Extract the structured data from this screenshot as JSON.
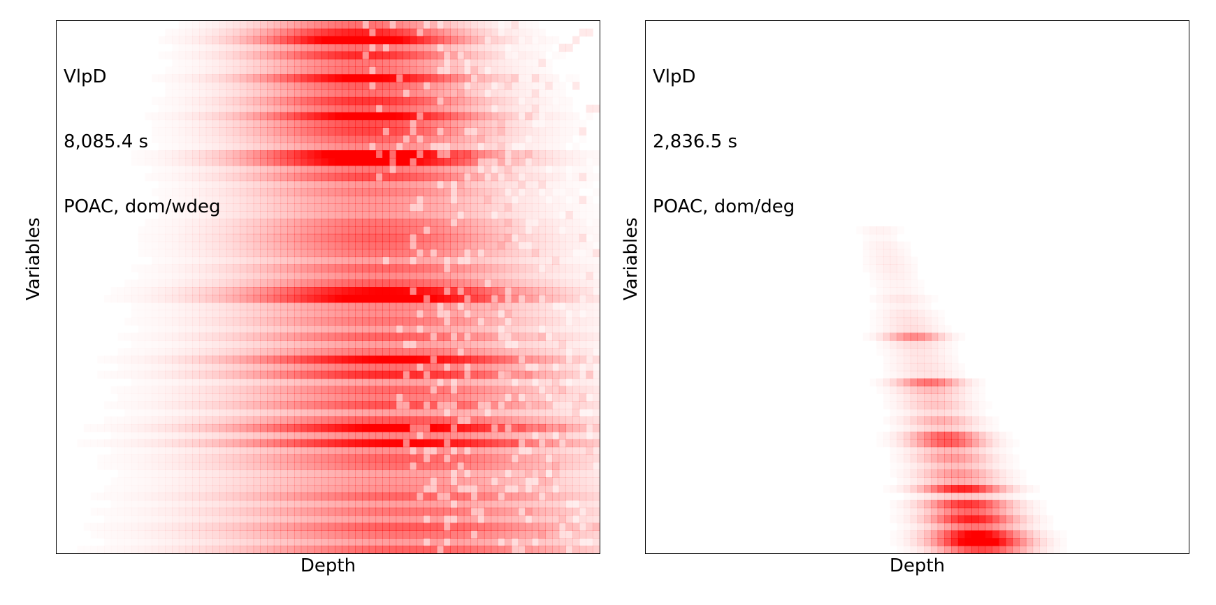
{
  "figure": {
    "heat_color": "#ff0000",
    "background_color": "#ffffff"
  },
  "chart_data": [
    {
      "type": "heatmap",
      "title": "",
      "xlabel": "Depth",
      "ylabel": "Variables",
      "annotation": [
        "VlpD",
        "8,085.4 s",
        "POAC, dom/wdeg"
      ],
      "colormap": "white-to-red",
      "grid": false,
      "xticks": [],
      "yticks": [],
      "profile": {
        "rows": 70,
        "cols": 80,
        "peak_row": 2,
        "center_col_top": 44,
        "center_col_bottom": 52,
        "spread_top": 10,
        "spread_bottom": 18,
        "hot_rows": [
          2,
          7,
          12,
          17,
          18,
          35,
          36,
          44,
          46,
          53,
          55
        ],
        "density": "broad"
      }
    },
    {
      "type": "heatmap",
      "title": "",
      "xlabel": "Depth",
      "ylabel": "Variables",
      "annotation": [
        "VlpD",
        "2,836.5 s",
        "POAC, dom/deg"
      ],
      "colormap": "white-to-red",
      "grid": false,
      "xticks": [],
      "yticks": [],
      "profile": {
        "rows": 70,
        "cols": 80,
        "peak_row": 68,
        "start_row": 27,
        "center_col_top": 34,
        "center_col_bottom": 49,
        "hot_rows": [
          41,
          47,
          54,
          55,
          61,
          63,
          65,
          67,
          68
        ],
        "density": "narrow"
      }
    }
  ]
}
